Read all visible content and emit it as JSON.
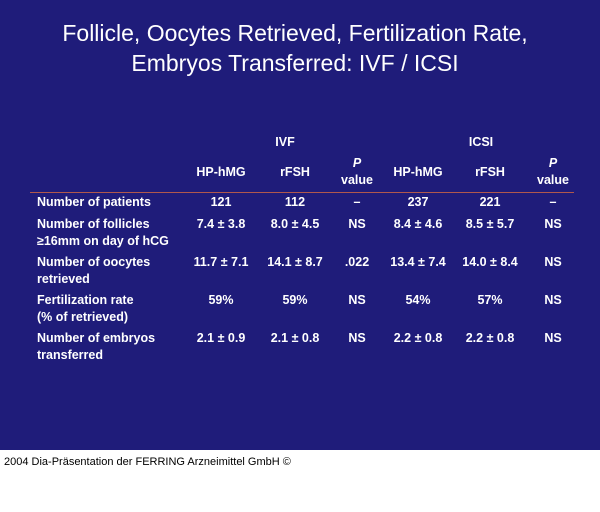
{
  "slide": {
    "title_lines": [
      "Follicle, Oocytes Retrieved, Fertilization Rate,",
      "Embryos Transferred: IVF / ICSI"
    ],
    "table": {
      "groups": [
        "IVF",
        "ICSI"
      ],
      "columns": [
        [
          "HP-hMG"
        ],
        [
          "rFSH"
        ],
        [
          "P",
          "value"
        ],
        [
          "HP-hMG"
        ],
        [
          "rFSH"
        ],
        [
          "P",
          "value"
        ]
      ],
      "rows": [
        {
          "label": [
            "Number of patients"
          ],
          "cells": [
            "121",
            "112",
            "–",
            "237",
            "221",
            "–"
          ]
        },
        {
          "label": [
            "Number of follicles",
            "≥16mm on day of hCG"
          ],
          "cells": [
            "7.4 ± 3.8",
            "8.0 ± 4.5",
            "NS",
            "8.4 ± 4.6",
            "8.5 ± 5.7",
            "NS"
          ]
        },
        {
          "label": [
            "Number of oocytes",
            "retrieved"
          ],
          "cells": [
            "11.7 ± 7.1",
            "14.1 ± 8.7",
            ".022",
            "13.4 ± 7.4",
            "14.0 ± 8.4",
            "NS"
          ]
        },
        {
          "label": [
            "Fertilization rate",
            "(% of retrieved)"
          ],
          "cells": [
            "59%",
            "59%",
            "NS",
            "54%",
            "57%",
            "NS"
          ]
        },
        {
          "label": [
            "Number of embryos",
            "transferred"
          ],
          "cells": [
            "2.1 ± 0.9",
            "2.1 ± 0.8",
            "NS",
            "2.2 ± 0.8",
            "2.2 ± 0.8",
            "NS"
          ]
        }
      ]
    }
  },
  "footer": "2004 Dia-Präsentation der FERRING Arzneimittel GmbH ©"
}
